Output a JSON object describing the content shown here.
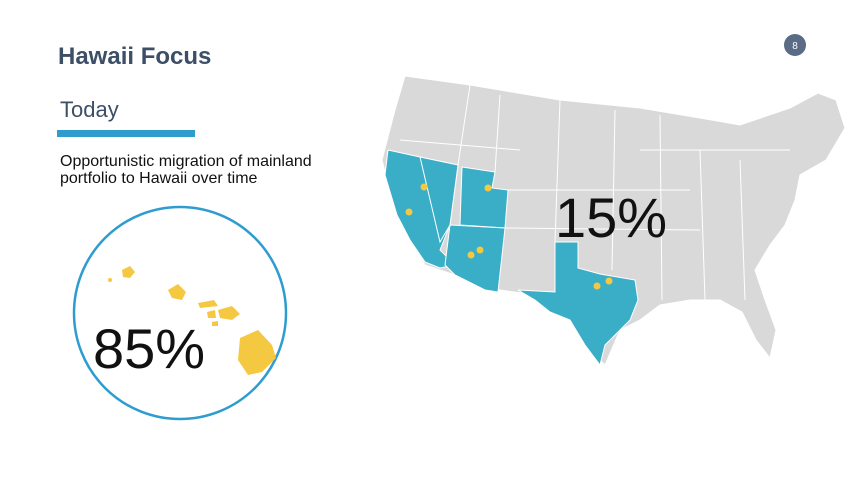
{
  "header": {
    "title": "Hawaii Focus",
    "page_number": "8"
  },
  "section": {
    "heading": "Today",
    "body": [
      "Opportunistic migration of mainland",
      "portfolio to Hawaii over time"
    ]
  },
  "hawaii": {
    "share": "85%"
  },
  "mainland": {
    "share": "15%"
  }
}
